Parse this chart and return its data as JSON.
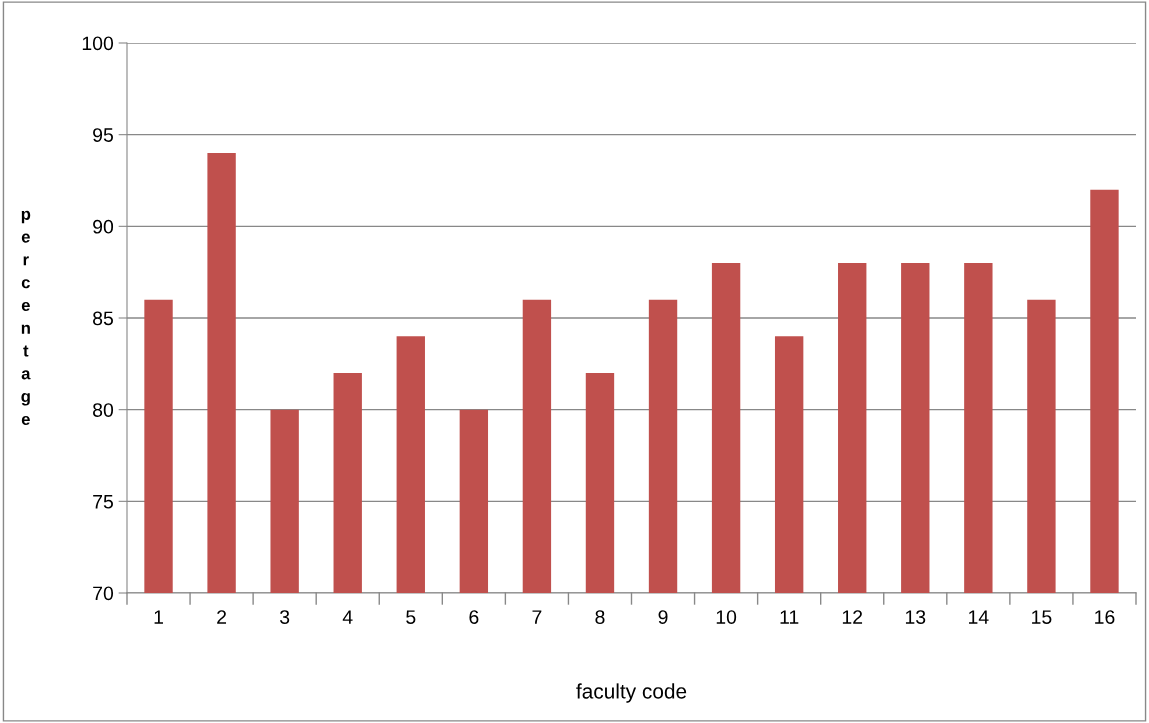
{
  "chart_data": {
    "type": "bar",
    "xlabel": "faculty code",
    "ylabel": "percentage",
    "categories": [
      "1",
      "2",
      "3",
      "4",
      "5",
      "6",
      "7",
      "8",
      "9",
      "10",
      "11",
      "12",
      "13",
      "14",
      "15",
      "16"
    ],
    "values": [
      86,
      94,
      80,
      82,
      84,
      80,
      86,
      82,
      86,
      88,
      84,
      88,
      88,
      88,
      86,
      92
    ],
    "color": "#c0504d",
    "ylim": [
      70,
      100
    ],
    "yticks": [
      70,
      75,
      80,
      85,
      90,
      95,
      100
    ],
    "grid": "y",
    "legend": false
  }
}
